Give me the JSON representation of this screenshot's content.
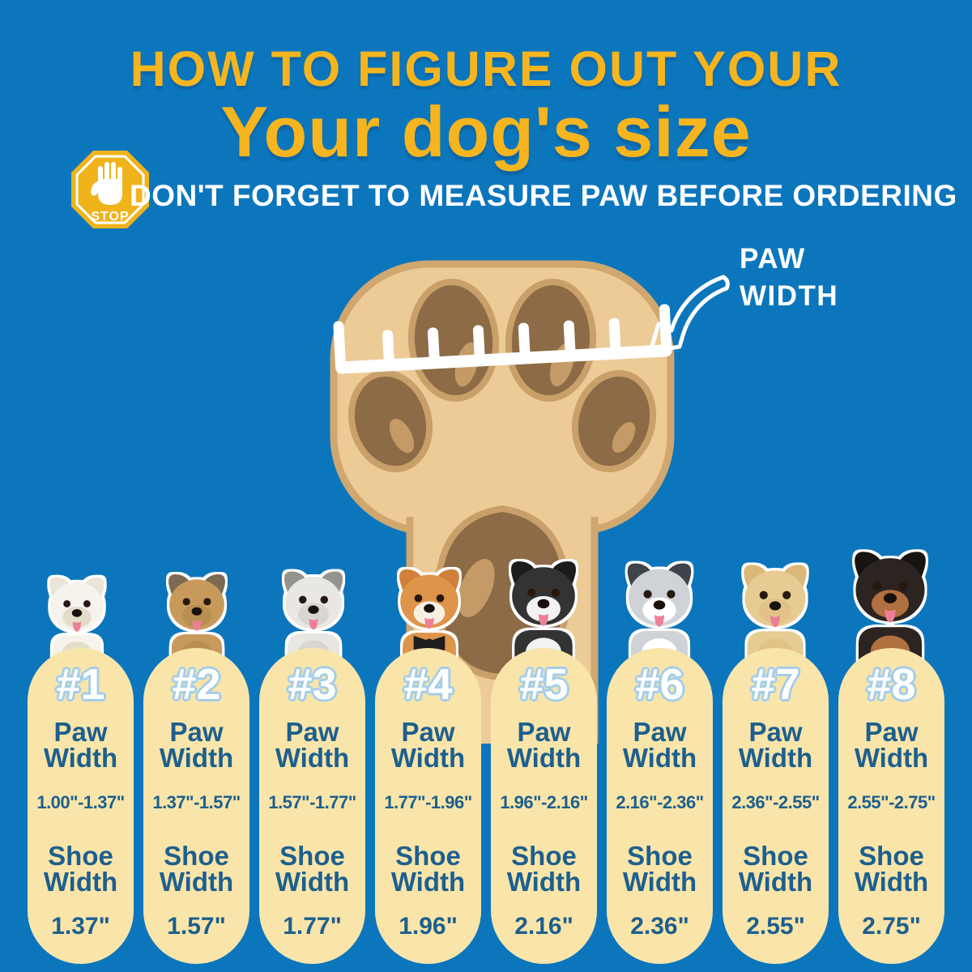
{
  "theme": {
    "bg": "#0c76bd",
    "yellow": "#f6b51e",
    "cream": "#f9e5a9",
    "blue": "#1d5f8e",
    "numline": "#a3cdea",
    "stop_amber": "#f0b31c",
    "paw_light": "#eccb97",
    "paw_outline": "#d0a76f",
    "pad_brown": "#8c6b46",
    "pad_ring": "#c9a06a",
    "pad_highlight": "#c49b66"
  },
  "header": {
    "title_line1": "HOW TO FIGURE OUT YOUR",
    "title_line2": "Your dog's size",
    "stop_sign_label": "STOP",
    "warning": "DON'T FORGET TO MEASURE PAW BEFORE ORDERING"
  },
  "paw_diagram": {
    "label": "PAW\nWIDTH"
  },
  "labels": {
    "paw_width": "Paw Width",
    "shoe_width": "Shoe Width"
  },
  "columns": [
    {
      "number": "#1",
      "paw_width_range": "1.00\"-1.37\"",
      "shoe_width": "1.37\"",
      "dog": {
        "name": "bichon-frise",
        "fur": "#f6f3ec",
        "patch": "#eae5d8",
        "muzzle": "#e3dcc9"
      }
    },
    {
      "number": "#2",
      "paw_width_range": "1.37\"-1.57\"",
      "shoe_width": "1.57\"",
      "dog": {
        "name": "yorkshire-terrier",
        "fur": "#c79a5c",
        "patch": "#7d6a52",
        "muzzle": "#b98e52"
      }
    },
    {
      "number": "#3",
      "paw_width_range": "1.57\"-1.77\"",
      "shoe_width": "1.77\"",
      "dog": {
        "name": "bearded-collie",
        "fur": "#e9e7e3",
        "patch": "#94938f",
        "muzzle": "#d9d6cf"
      }
    },
    {
      "number": "#4",
      "paw_width_range": "1.77\"-1.96\"",
      "shoe_width": "1.96\"",
      "dog": {
        "name": "shiba-inu",
        "fur": "#de9449",
        "patch": "#d08038",
        "muzzle": "#f7efe2",
        "accessory": "bowtie"
      }
    },
    {
      "number": "#5",
      "paw_width_range": "1.96\"-2.16\"",
      "shoe_width": "2.16\"",
      "dog": {
        "name": "border-collie",
        "fur": "#333333",
        "patch": "#1c1c1c",
        "muzzle": "#f2f2f2"
      }
    },
    {
      "number": "#6",
      "paw_width_range": "2.16\"-2.36\"",
      "shoe_width": "2.36\"",
      "dog": {
        "name": "husky",
        "fur": "#cfd3d8",
        "patch": "#3f444b",
        "muzzle": "#ffffff"
      }
    },
    {
      "number": "#7",
      "paw_width_range": "2.36\"-2.55\"",
      "shoe_width": "2.55\"",
      "dog": {
        "name": "golden-retriever",
        "fur": "#e6cb92",
        "patch": "#d9b878",
        "muzzle": "#e2c286"
      }
    },
    {
      "number": "#8",
      "paw_width_range": "2.55\"-2.75\"",
      "shoe_width": "2.75\"",
      "dog": {
        "name": "rottweiler",
        "fur": "#2b2421",
        "patch": "#171310",
        "muzzle": "#b0703f"
      }
    }
  ]
}
